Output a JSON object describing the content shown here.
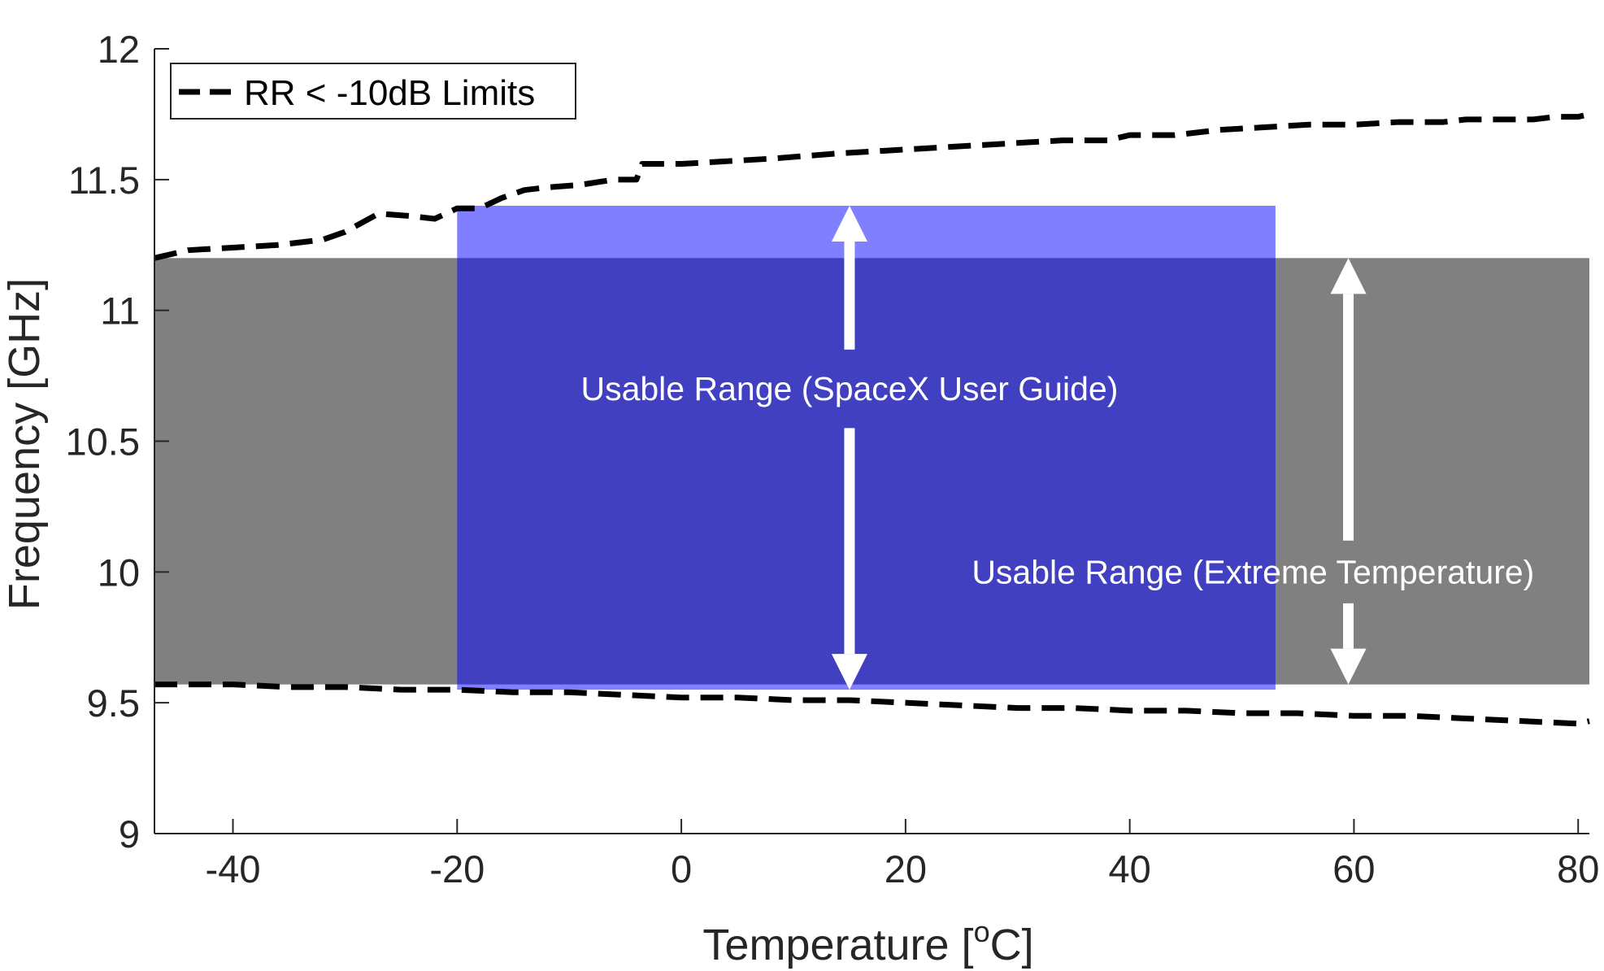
{
  "chart_data": {
    "type": "line",
    "xlabel": "Temperature [",
    "xlabel_superscript": "o",
    "xlabel_suffix": "C]",
    "ylabel": "Frequency [GHz]",
    "xlim": [
      -47,
      81
    ],
    "ylim": [
      9,
      12
    ],
    "xticks": [
      -40,
      -20,
      0,
      20,
      40,
      60,
      80
    ],
    "yticks": [
      9,
      9.5,
      10,
      10.5,
      11,
      11.5,
      12
    ],
    "xtick_labels": [
      "-40",
      "-20",
      "0",
      "20",
      "40",
      "60",
      "80"
    ],
    "ytick_labels": [
      "9",
      "9.5",
      "10",
      "10.5",
      "11",
      "11.5",
      "12"
    ],
    "grid": false,
    "legend": {
      "location": "top-left",
      "entries": [
        {
          "label": "RR < -10dB Limits",
          "style": "dashed",
          "color": "#000000"
        }
      ]
    },
    "series": [
      {
        "name": "RR < -10dB Limits",
        "style": "dashed",
        "color": "#000000",
        "x": [
          -47,
          -44,
          -40,
          -36,
          -32,
          -30,
          -27,
          -24,
          -22,
          -20,
          -18,
          -16,
          -14,
          -12,
          -9,
          -6,
          -4,
          -3.5,
          0,
          4,
          8,
          11,
          14,
          18,
          22,
          26,
          30,
          34,
          38,
          40,
          44,
          48,
          52,
          56,
          60,
          64,
          68,
          70,
          72,
          76,
          78,
          80,
          81
        ],
        "y": [
          11.2,
          11.23,
          11.24,
          11.25,
          11.27,
          11.3,
          11.37,
          11.36,
          11.35,
          11.39,
          11.39,
          11.43,
          11.46,
          11.47,
          11.48,
          11.5,
          11.5,
          11.56,
          11.56,
          11.57,
          11.58,
          11.59,
          11.6,
          11.61,
          11.62,
          11.63,
          11.64,
          11.65,
          11.65,
          11.67,
          11.67,
          11.69,
          11.7,
          11.71,
          11.71,
          11.72,
          11.72,
          11.73,
          11.73,
          11.73,
          11.74,
          11.74,
          11.75
        ]
      },
      {
        "name": "",
        "style": "dashed",
        "color": "#000000",
        "x": [
          -47,
          -40,
          -35,
          -30,
          -25,
          -20,
          -15,
          -10,
          -5,
          0,
          5,
          10,
          15,
          20,
          25,
          30,
          35,
          40,
          45,
          50,
          55,
          60,
          65,
          70,
          75,
          80,
          81
        ],
        "y": [
          9.57,
          9.57,
          9.56,
          9.56,
          9.55,
          9.55,
          9.54,
          9.54,
          9.53,
          9.52,
          9.52,
          9.51,
          9.51,
          9.5,
          9.49,
          9.48,
          9.48,
          9.47,
          9.47,
          9.46,
          9.46,
          9.45,
          9.45,
          9.44,
          9.43,
          9.42,
          9.43
        ]
      }
    ],
    "regions": [
      {
        "name": "extreme-temperature-range",
        "x_range": [
          -47,
          81
        ],
        "y_range": [
          9.57,
          11.2
        ],
        "color": "#808080",
        "opacity": 1
      },
      {
        "name": "spacex-user-guide-range",
        "x_range": [
          -20,
          53
        ],
        "y_range": [
          9.55,
          11.4
        ],
        "color": "#0000ff",
        "opacity": 0.5
      }
    ],
    "arrows": [
      {
        "name": "spacex-range-arrow",
        "x": 15,
        "y_from": 9.55,
        "y_to": 11.4
      },
      {
        "name": "extreme-range-arrow",
        "x": 59.5,
        "y_from": 9.57,
        "y_to": 11.2
      }
    ],
    "annotations": [
      {
        "name": "spacex-range-label",
        "text": "Usable Range (SpaceX User Guide)",
        "x": 15,
        "y": 10.7
      },
      {
        "name": "extreme-range-label",
        "text": "Usable Range (Extreme Temperature)",
        "x": 51,
        "y": 10
      }
    ]
  }
}
